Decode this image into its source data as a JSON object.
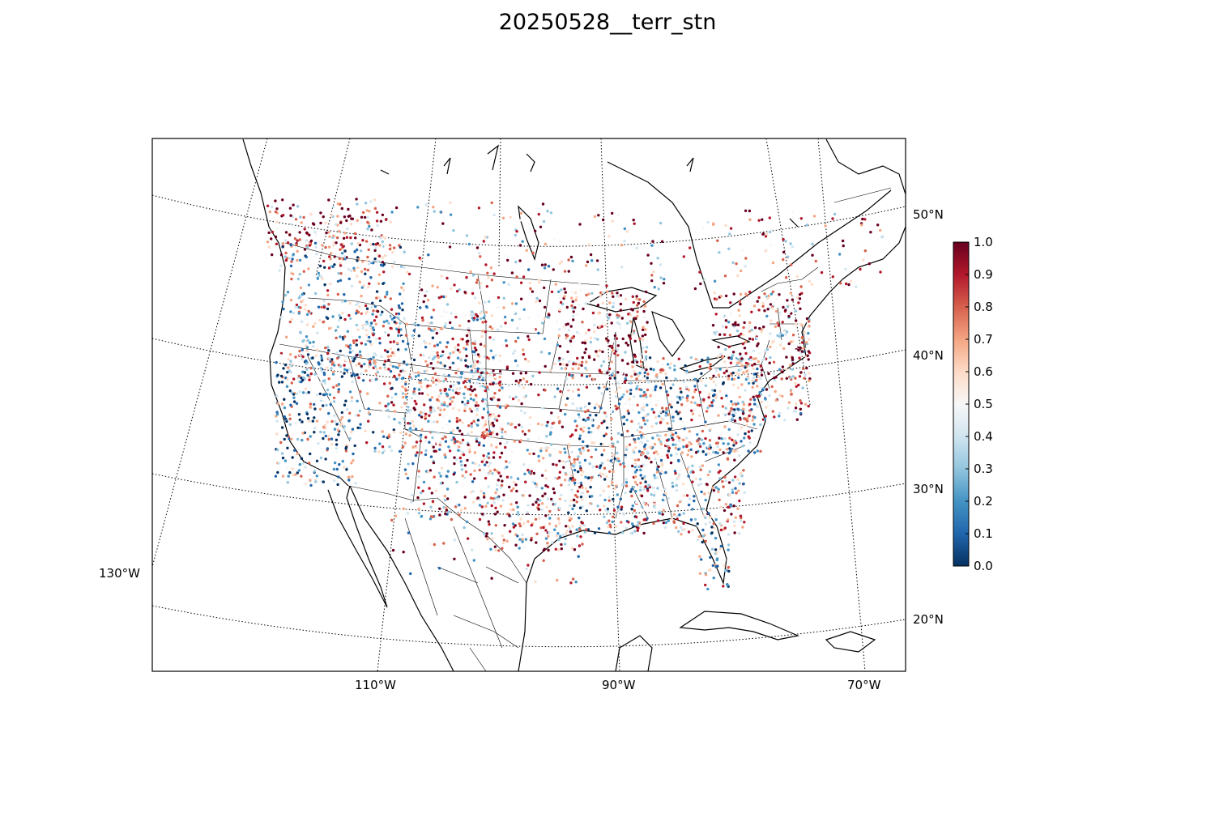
{
  "title": "20250528__terr_stn",
  "map": {
    "lat_labels": [
      "50°N",
      "40°N",
      "30°N",
      "20°N"
    ],
    "lon_labels": [
      "130°W",
      "110°W",
      "90°W",
      "70°W"
    ]
  },
  "colorbar": {
    "colormap": "RdBu_r",
    "ticks": [
      "0.0",
      "0.1",
      "0.2",
      "0.3",
      "0.4",
      "0.5",
      "0.6",
      "0.7",
      "0.8",
      "0.9",
      "1.0"
    ],
    "min": 0.0,
    "max": 1.0,
    "colors": [
      "#053061",
      "#2166ac",
      "#4393c3",
      "#92c5de",
      "#d1e5f0",
      "#f7f7f7",
      "#fddbc7",
      "#f4a582",
      "#d6604d",
      "#b2182b",
      "#67001f"
    ]
  }
}
